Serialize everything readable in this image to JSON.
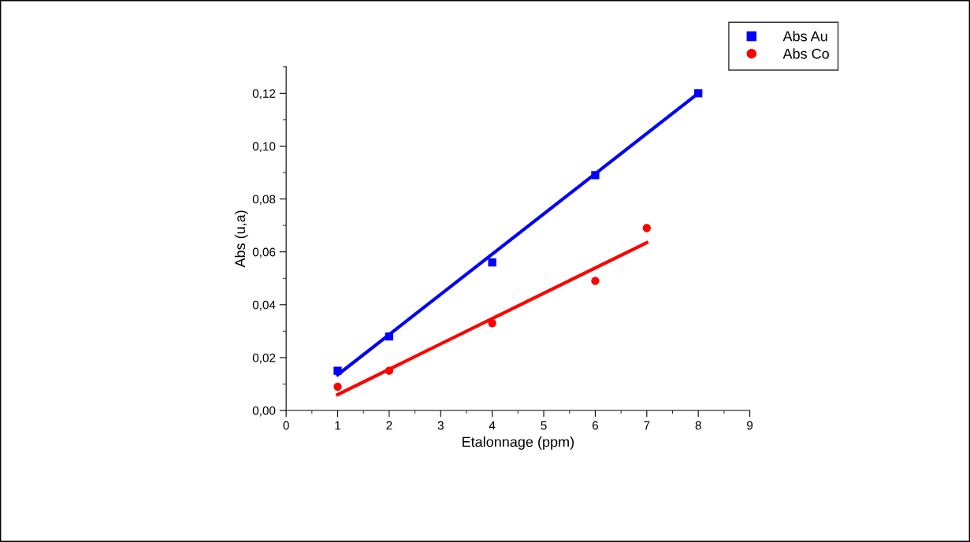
{
  "chart_data": {
    "type": "scatter",
    "xlabel": "Etalonnage (ppm)",
    "ylabel": "Abs (u,a)",
    "xlim": [
      0,
      9
    ],
    "xticks": [
      0,
      1,
      2,
      3,
      4,
      5,
      6,
      7,
      8,
      9
    ],
    "ylim": [
      0,
      0.13
    ],
    "yticks": [
      {
        "value": 0,
        "label": "0,00"
      },
      {
        "value": 0.02,
        "label": "0,02"
      },
      {
        "value": 0.04,
        "label": "0,04"
      },
      {
        "value": 0.06,
        "label": "0,06"
      },
      {
        "value": 0.08,
        "label": "0,08"
      },
      {
        "value": 0.1,
        "label": "0,10"
      },
      {
        "value": 0.12,
        "label": "0,12"
      }
    ],
    "grid": false,
    "legend": "top right",
    "series": [
      {
        "name": "Abs Au",
        "marker": "square",
        "color": "#0000ff",
        "x": [
          1,
          2,
          4,
          6,
          8
        ],
        "values": [
          0.015,
          0.028,
          0.056,
          0.089,
          0.12
        ]
      },
      {
        "name": "Abs Co",
        "marker": "circle",
        "color": "#ff0000",
        "x": [
          1,
          2,
          4,
          6,
          7
        ],
        "values": [
          0.009,
          0.015,
          0.033,
          0.049,
          0.069
        ]
      },
      {
        "type": "line",
        "color": "#0000ff",
        "line_style": "solid",
        "marker": "none",
        "x": [
          1,
          8
        ],
        "values": [
          0.0135,
          0.12
        ]
      },
      {
        "type": "line",
        "color": "#ff0000",
        "line_style": "solid",
        "marker": "none",
        "x": [
          1,
          7
        ],
        "values": [
          0.006,
          0.0635
        ]
      }
    ]
  }
}
